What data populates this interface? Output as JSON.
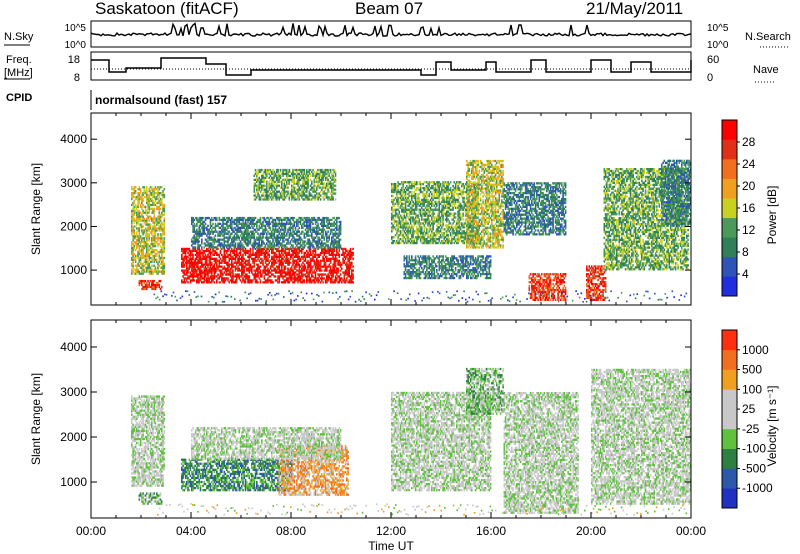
{
  "header": {
    "station": "Saskatoon (fitACF)",
    "beam": "Beam 07",
    "date": "21/May/2011"
  },
  "top_panels": {
    "nsky_label": "N.Sky",
    "nsky_ticks": [
      "10^5",
      "10^0"
    ],
    "nsearch_label": "N.Search",
    "nsearch_ticks": [
      "10^5",
      "10^0"
    ],
    "freq_label_1": "Freq.",
    "freq_label_2": "[MHz]",
    "freq_ticks": [
      "18",
      "8"
    ],
    "nave_label": "Nave",
    "nave_ticks": [
      "60",
      "0"
    ],
    "cpid_label": "CPID",
    "cpid_text": "normalsound (fast) 157"
  },
  "colors": {
    "power_scale": [
      "#1f2fe0",
      "#2e54b8",
      "#2f7f5a",
      "#4a9a5a",
      "#c8d020",
      "#f0a020",
      "#f07020",
      "#e23018",
      "#ff0000"
    ],
    "velocity_scale": [
      "#2030c0",
      "#2d5aa8",
      "#2e8040",
      "#60c040",
      "#c8c8c8",
      "#c8c8c8",
      "#f0a020",
      "#f07020",
      "#ff3010"
    ],
    "ground_scatter": "#c8c8c8"
  },
  "chart_data": [
    {
      "type": "heatmap",
      "name": "power",
      "xlabel": "Time UT",
      "ylabel": "Slant Range [km]",
      "xlim": [
        0,
        24
      ],
      "ylim": [
        200,
        4600
      ],
      "x_ticks": [
        "00:00",
        "04:00",
        "08:00",
        "12:00",
        "16:00",
        "20:00",
        "00:00"
      ],
      "y_ticks": [
        1000,
        2000,
        3000,
        4000
      ],
      "colorbar_label": "Power [dB]",
      "colorbar_ticks": [
        4,
        8,
        12,
        16,
        20,
        24,
        28
      ],
      "regions": [
        {
          "t0": 1.6,
          "t1": 2.9,
          "r0": 900,
          "r1": 2900,
          "level": 4
        },
        {
          "t0": 1.9,
          "t1": 2.8,
          "r0": 550,
          "r1": 750,
          "level": 7
        },
        {
          "t0": 3.6,
          "t1": 10.5,
          "r0": 700,
          "r1": 1500,
          "level": 8
        },
        {
          "t0": 4.0,
          "t1": 10.0,
          "r0": 1500,
          "r1": 2200,
          "level": 2
        },
        {
          "t0": 6.5,
          "t1": 9.8,
          "r0": 2600,
          "r1": 3300,
          "level": 3
        },
        {
          "t0": 12.0,
          "t1": 15.5,
          "r0": 1600,
          "r1": 3000,
          "level": 3
        },
        {
          "t0": 12.5,
          "t1": 16.0,
          "r0": 800,
          "r1": 1300,
          "level": 2
        },
        {
          "t0": 15.0,
          "t1": 16.5,
          "r0": 1500,
          "r1": 3500,
          "level": 4
        },
        {
          "t0": 16.5,
          "t1": 19.0,
          "r0": 1800,
          "r1": 3000,
          "level": 2
        },
        {
          "t0": 17.5,
          "t1": 19.0,
          "r0": 300,
          "r1": 900,
          "level": 7
        },
        {
          "t0": 19.8,
          "t1": 20.6,
          "r0": 300,
          "r1": 1100,
          "level": 7
        },
        {
          "t0": 20.5,
          "t1": 23.9,
          "r0": 1000,
          "r1": 3300,
          "level": 3
        },
        {
          "t0": 22.8,
          "t1": 24.0,
          "r0": 2000,
          "r1": 3500,
          "level": 2
        }
      ]
    },
    {
      "type": "heatmap",
      "name": "velocity",
      "xlabel": "Time UT",
      "ylabel": "Slant Range [km]",
      "xlim": [
        0,
        24
      ],
      "ylim": [
        200,
        4600
      ],
      "x_ticks": [
        "00:00",
        "04:00",
        "08:00",
        "12:00",
        "16:00",
        "20:00",
        "00:00"
      ],
      "y_ticks": [
        1000,
        2000,
        3000,
        4000
      ],
      "colorbar_label": "Velocity [m s⁻¹]",
      "colorbar_ticks": [
        "-1000",
        "-500",
        "-100",
        "-25",
        "25",
        "100",
        "500",
        "1000"
      ],
      "regions": [
        {
          "t0": 1.6,
          "t1": 2.9,
          "r0": 900,
          "r1": 2900,
          "level": 4
        },
        {
          "t0": 1.9,
          "t1": 2.8,
          "r0": 500,
          "r1": 750,
          "level": 3
        },
        {
          "t0": 3.6,
          "t1": 8.0,
          "r0": 800,
          "r1": 1500,
          "level": 2
        },
        {
          "t0": 7.5,
          "t1": 10.3,
          "r0": 700,
          "r1": 1800,
          "level": 6
        },
        {
          "t0": 4.0,
          "t1": 10.0,
          "r0": 1500,
          "r1": 2200,
          "level": 4
        },
        {
          "t0": 12.0,
          "t1": 16.0,
          "r0": 800,
          "r1": 3000,
          "level": 4
        },
        {
          "t0": 15.0,
          "t1": 16.5,
          "r0": 2500,
          "r1": 3500,
          "level": 3
        },
        {
          "t0": 16.5,
          "t1": 19.5,
          "r0": 300,
          "r1": 3000,
          "level": 4
        },
        {
          "t0": 20.0,
          "t1": 24.0,
          "r0": 500,
          "r1": 3500,
          "level": 4
        }
      ]
    }
  ]
}
